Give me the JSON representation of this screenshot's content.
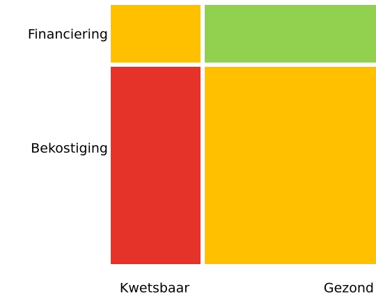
{
  "rows": [
    "Financiering",
    "Bekostiging"
  ],
  "columns": [
    "Kwetsbaar",
    "Gezond"
  ],
  "cells": [
    [
      "#ffc000",
      "#92d050"
    ],
    [
      "#e53329",
      "#ffc000"
    ]
  ]
}
